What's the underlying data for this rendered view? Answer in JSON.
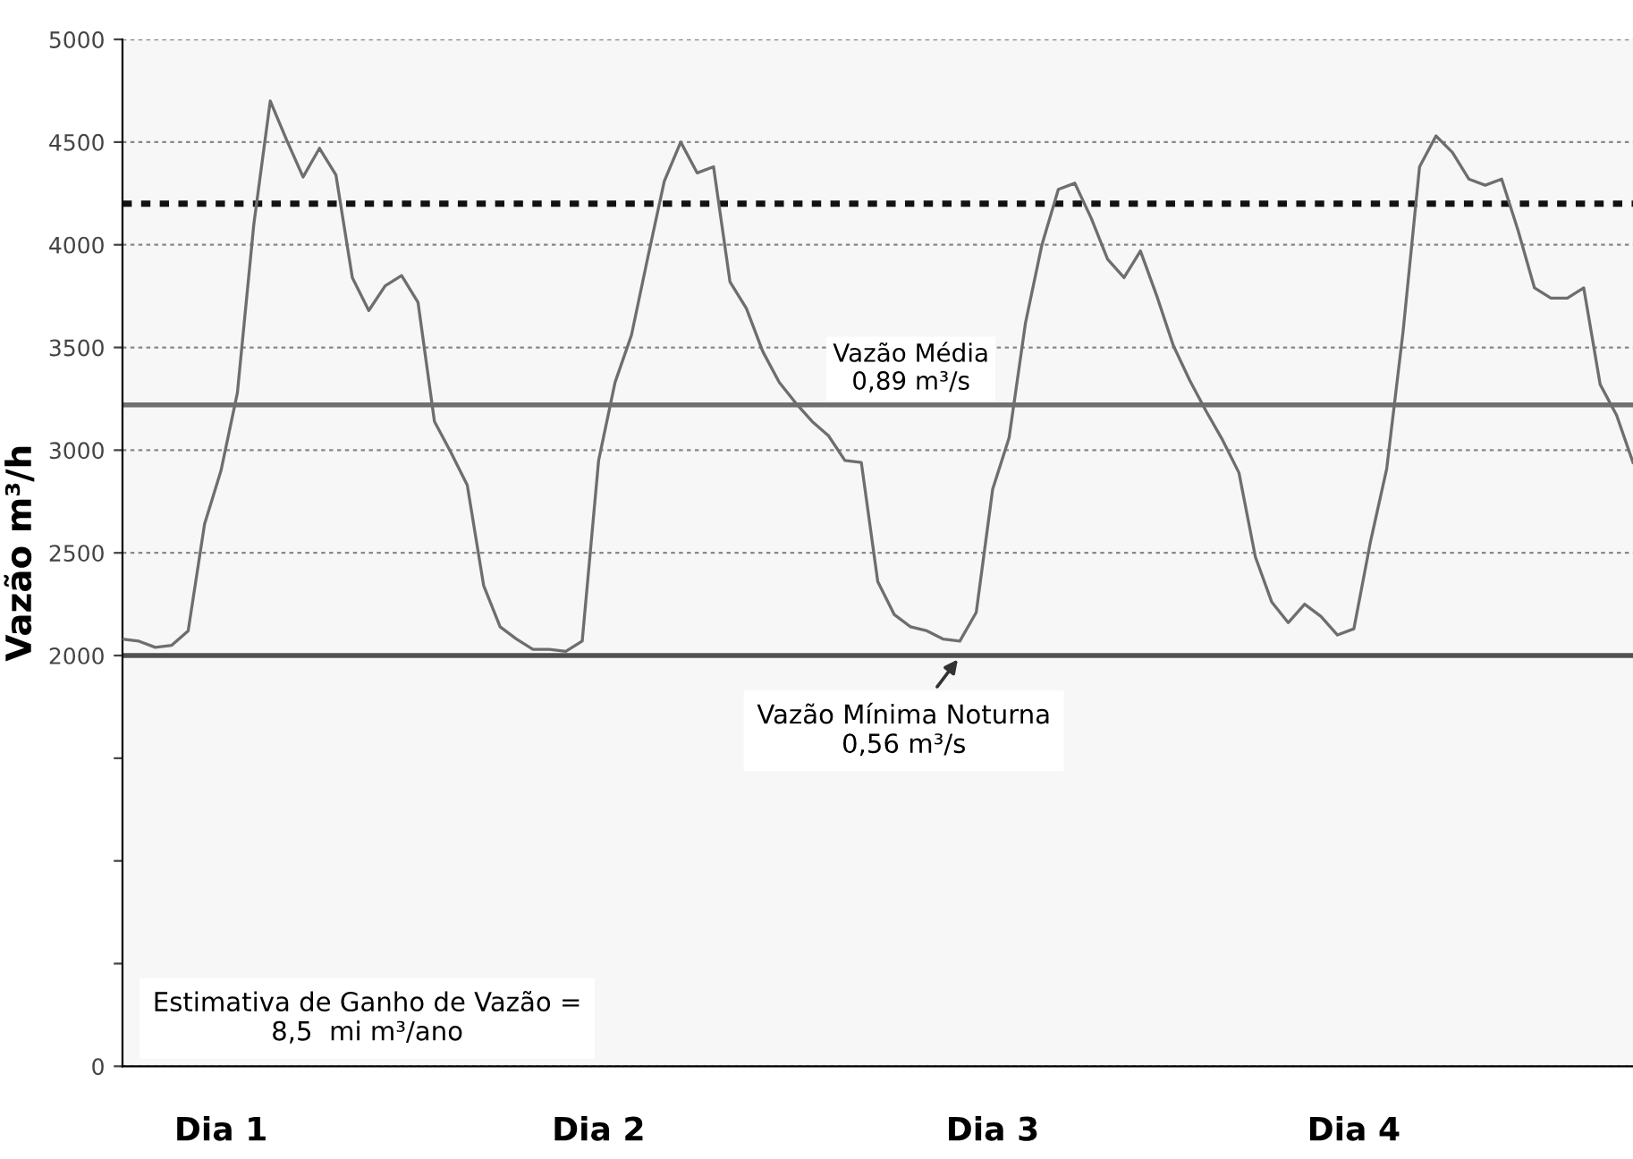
{
  "chart_data": {
    "type": "line",
    "ylabel": "Vazão m³/h",
    "categories": [
      null,
      null,
      null,
      null,
      null,
      null,
      "Dia 1",
      null,
      null,
      null,
      null,
      null,
      null,
      null,
      null,
      null,
      null,
      null,
      null,
      null,
      null,
      null,
      null,
      null,
      null,
      null,
      null,
      null,
      null,
      "Dia 2",
      null,
      null,
      null,
      null,
      null,
      null,
      null,
      null,
      null,
      null,
      null,
      null,
      null,
      null,
      null,
      null,
      null,
      null,
      null,
      null,
      null,
      null,
      null,
      "Dia 3",
      null,
      null,
      null,
      null,
      null,
      null,
      null,
      null,
      null,
      null,
      null,
      null,
      null,
      null,
      null,
      null,
      null,
      null,
      null,
      null,
      null,
      "Dia 4",
      null,
      null,
      null,
      null,
      null,
      null,
      null,
      null,
      null,
      null,
      null,
      null,
      null,
      null,
      null,
      null,
      null
    ],
    "series": [
      {
        "color": "#6e6e6e",
        "values": [
          2080,
          2070,
          2040,
          2050,
          2120,
          2640,
          2900,
          3280,
          4100,
          4700,
          4510,
          4330,
          4470,
          4340,
          3840,
          3680,
          3800,
          3850,
          3720,
          3140,
          2990,
          2830,
          2340,
          2140,
          2080,
          2030,
          2030,
          2020,
          2070,
          2950,
          3330,
          3560,
          3940,
          4310,
          4500,
          4350,
          4380,
          3820,
          3690,
          3480,
          3330,
          3230,
          3140,
          3070,
          2950,
          2940,
          2360,
          2200,
          2140,
          2120,
          2080,
          2070,
          2210,
          2810,
          3060,
          3620,
          4000,
          4270,
          4300,
          4130,
          3930,
          3840,
          3970,
          3750,
          3510,
          3340,
          3190,
          3050,
          2890,
          2480,
          2260,
          2160,
          2250,
          2190,
          2100,
          2130,
          2550,
          2910,
          3580,
          4380,
          4530,
          4450,
          4320,
          4290,
          4320,
          4070,
          3790,
          3740,
          3740,
          3790,
          3320,
          3170,
          2940
        ]
      }
    ],
    "ylim": [
      0,
      5000
    ],
    "yticks": [
      0,
      {
        "value": 500,
        "label": null
      },
      {
        "value": 1000,
        "label": null
      },
      {
        "value": 1500,
        "label": null
      },
      2000,
      2500,
      3000,
      3500,
      4000,
      4500,
      5000
    ],
    "grid": "y",
    "line_style": "solid",
    "marker": "none",
    "ref_lines": [
      {
        "axis": "y",
        "value": 4200,
        "color": "#111111",
        "line_style": "dotted"
      },
      {
        "axis": "y",
        "value": 3220,
        "color": "#707070",
        "line_style": "solid",
        "label": "Vazão Média\n0,89 m³/s"
      },
      {
        "axis": "y",
        "value": 2000,
        "color": "#505050",
        "line_style": "solid",
        "label": "Vazão Mínima Noturna\n0,56 m³/s"
      }
    ],
    "annotations": [
      "Estimativa de Ganho de Vazão =\n8,5  mi m³/ano"
    ]
  }
}
